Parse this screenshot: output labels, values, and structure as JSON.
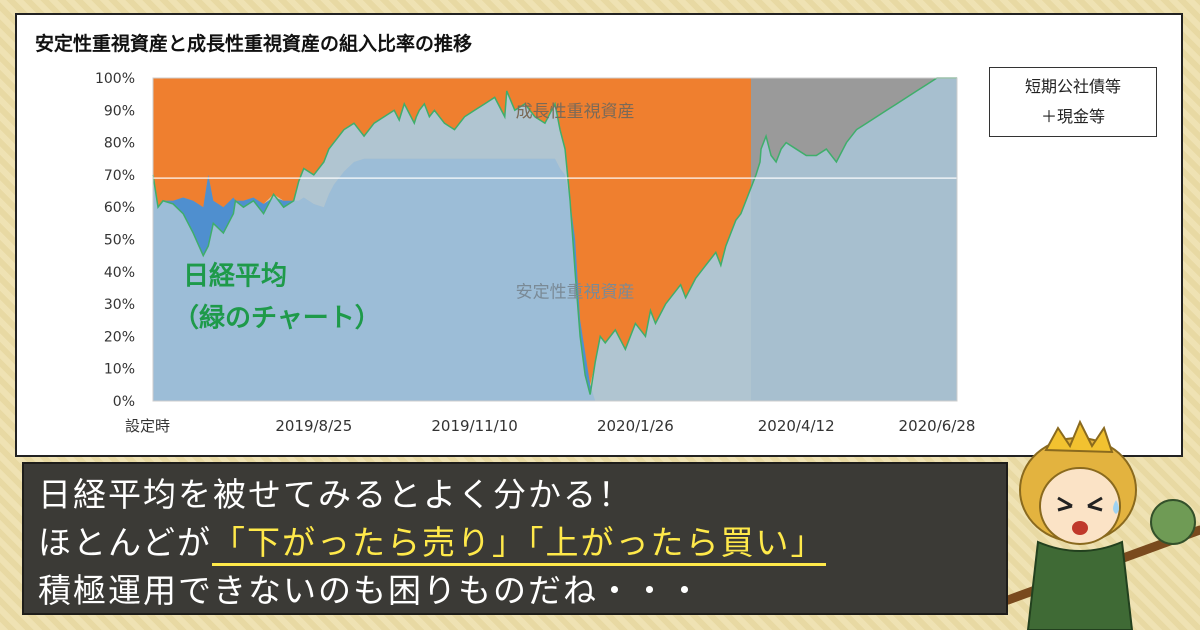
{
  "chart_data": {
    "type": "area",
    "title": "安定性重視資産と成長性重視資産の組入比率の推移",
    "y_ticks": [
      "100%",
      "90%",
      "80%",
      "70%",
      "60%",
      "50%",
      "40%",
      "30%",
      "20%",
      "10%",
      "0%"
    ],
    "ylim": [
      0,
      100
    ],
    "x_ticks": [
      "設定時",
      "2019/8/25",
      "2019/11/10",
      "2020/1/26",
      "2020/4/12",
      "2020/6/28"
    ],
    "area_labels": {
      "growth": "成長性重視資産",
      "stable": "安定性重視資産"
    },
    "legend_box": [
      "短期公社債等",
      "＋現金等"
    ],
    "overlay_label": [
      "日経平均",
      "（緑のチャート）"
    ],
    "colors": {
      "growth": "#ef7f2f",
      "growth_light": "#d6c3a6",
      "stable": "#4f8fcf",
      "stable_light": "#a9c6d8",
      "cash": "#9a9a9a",
      "nikkei": "#3fae6b",
      "overlay_text": "#1e9a4a"
    },
    "x": [
      0,
      5,
      10,
      20,
      30,
      40,
      50,
      55,
      60,
      70,
      80,
      82,
      90,
      100,
      110,
      120,
      130,
      140,
      145,
      150,
      160,
      170,
      175,
      180,
      190,
      200,
      210,
      220,
      230,
      240,
      245,
      250,
      255,
      260,
      262,
      265,
      270,
      275,
      280,
      290,
      300,
      310,
      320,
      330,
      340,
      350,
      352,
      360,
      370,
      380,
      390,
      400,
      405,
      410,
      415,
      420,
      425,
      430,
      435,
      440,
      445,
      450,
      460,
      470,
      480,
      490,
      495,
      500,
      510,
      520,
      525,
      530,
      540,
      545,
      550,
      555,
      560,
      565,
      570,
      575,
      580,
      585,
      590,
      595,
      600,
      604,
      605,
      610,
      615,
      620,
      625,
      630,
      640,
      650,
      660,
      670,
      680,
      690,
      700,
      710,
      720,
      730,
      740,
      750,
      760,
      770,
      780,
      790,
      800
    ],
    "stable": [
      70,
      60,
      62,
      62,
      63,
      62,
      60,
      70,
      62,
      60,
      63,
      62,
      62,
      63,
      61,
      63,
      62,
      62,
      62,
      63,
      61,
      60,
      64,
      67,
      71,
      74,
      75,
      75,
      75,
      75,
      75,
      75,
      75,
      75,
      75,
      75,
      75,
      75,
      75,
      75,
      75,
      75,
      75,
      75,
      75,
      75,
      75,
      75,
      75,
      75,
      75,
      75,
      72,
      70,
      62,
      50,
      25,
      15,
      5,
      0,
      0,
      0,
      0,
      0,
      0,
      0,
      0,
      0,
      0,
      0,
      0,
      0,
      0,
      0,
      0,
      0,
      0,
      0,
      0,
      0,
      0,
      0,
      0,
      0,
      0,
      0,
      0,
      0,
      0,
      0,
      0,
      0,
      0,
      0,
      0,
      0,
      0,
      0,
      0,
      0,
      0,
      0,
      0,
      0,
      0,
      0,
      0,
      0,
      0
    ],
    "nikkei": [
      70,
      60,
      62,
      61,
      58,
      52,
      45,
      48,
      55,
      52,
      58,
      62,
      60,
      62,
      58,
      64,
      60,
      62,
      68,
      72,
      70,
      74,
      78,
      80,
      84,
      86,
      82,
      86,
      88,
      90,
      87,
      92,
      89,
      86,
      88,
      90,
      92,
      88,
      90,
      86,
      84,
      88,
      90,
      92,
      94,
      88,
      96,
      90,
      92,
      88,
      86,
      92,
      84,
      78,
      62,
      40,
      20,
      8,
      2,
      12,
      20,
      18,
      22,
      16,
      24,
      20,
      28,
      24,
      30,
      34,
      36,
      32,
      38,
      40,
      42,
      44,
      46,
      42,
      48,
      52,
      56,
      58,
      62,
      66,
      70,
      74,
      78,
      82,
      76,
      74,
      78,
      80,
      78,
      76,
      76,
      78,
      74,
      80,
      84,
      86,
      88,
      90,
      92,
      94,
      96,
      98,
      100,
      100,
      100
    ],
    "x_domain": [
      0,
      800
    ]
  },
  "banner": {
    "line1": "日経平均を被せてみるとよく分かる！",
    "line2_pre": "ほとんどが",
    "line2_hl": "「下がったら売り」「上がったら買い」",
    "line3": "積極運用できないのも困りものだね・・・"
  }
}
